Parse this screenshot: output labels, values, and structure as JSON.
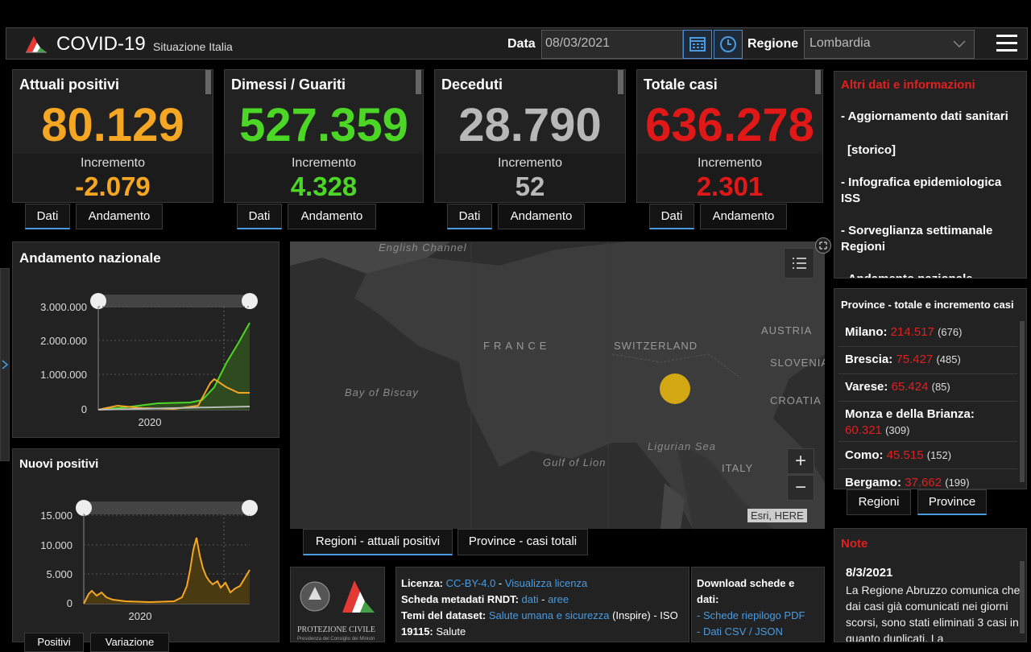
{
  "header": {
    "title": "COVID-19",
    "subtitle": "Situazione Italia",
    "date_label": "Data",
    "date_value": "08/03/2021",
    "region_label": "Regione",
    "region_value": "Lombardia"
  },
  "kpis": [
    {
      "title": "Attuali positivi",
      "value": "80.129",
      "incr_label": "Incremento",
      "incr": "-2.079",
      "color": "#f5a623",
      "tabs": [
        "Dati",
        "Andamento"
      ]
    },
    {
      "title": "Dimessi / Guariti",
      "value": "527.359",
      "incr_label": "Incremento",
      "incr": "4.328",
      "color": "#4cd625",
      "tabs": [
        "Dati",
        "Andamento"
      ]
    },
    {
      "title": "Deceduti",
      "value": "28.790",
      "incr_label": "Incremento",
      "incr": "52",
      "color": "#b8b8b8",
      "tabs": [
        "Dati",
        "Andamento"
      ]
    },
    {
      "title": "Totale casi",
      "value": "636.278",
      "incr_label": "Incremento",
      "incr": "2.301",
      "color": "#e01818",
      "tabs": [
        "Dati",
        "Andamento"
      ]
    }
  ],
  "info": {
    "title": "Altri dati e informazioni",
    "items": [
      "- Aggiornamento dati sanitari",
      "[storico]",
      "- Infografica epidemiologica ISS",
      "- Sorveglianza settimanale Regioni",
      "- Andamento nazionale"
    ]
  },
  "provinces": {
    "title": "Province - totale e incremento casi",
    "rows": [
      {
        "name": "Milano:",
        "total": "214.517",
        "incr": "(676)"
      },
      {
        "name": "Brescia:",
        "total": "75.427",
        "incr": "(485)"
      },
      {
        "name": "Varese:",
        "total": "65.424",
        "incr": "(85)"
      },
      {
        "name": "Monza e della Brianza:",
        "total": "60.321",
        "incr": "(309)"
      },
      {
        "name": "Como:",
        "total": "45.515",
        "incr": "(152)"
      },
      {
        "name": "Bergamo:",
        "total": "37.662",
        "incr": "(199)"
      }
    ],
    "tabs": [
      "Regioni",
      "Province"
    ]
  },
  "note": {
    "title": "Note",
    "date": "8/3/2021",
    "text": "La Regione Abruzzo comunica che dai casi già comunicati nei giorni scorsi, sono stati eliminati 3 casi in quanto duplicati. La"
  },
  "chart_andamento": {
    "title": "Andamento nazionale",
    "chart_data": {
      "type": "area",
      "yticks": [
        "3.000.000",
        "2.000.000",
        "1.000.000",
        "0"
      ],
      "xticks": [
        "2020"
      ],
      "ylim": [
        0,
        3000000
      ]
    }
  },
  "chart_nuovi": {
    "title": "Nuovi positivi",
    "chart_data": {
      "type": "area",
      "yticks": [
        "15.000",
        "10.000",
        "5.000",
        "0"
      ],
      "xticks": [
        "2020"
      ],
      "ylim": [
        0,
        15000
      ]
    },
    "tabs": [
      "Positivi",
      "Variazione"
    ]
  },
  "map": {
    "labels": [
      "English Channel",
      "FRANCE",
      "SWITZERLAND",
      "AUSTRIA",
      "SLOVENIA",
      "CROATIA",
      "Bay of Biscay",
      "Gulf of Lion",
      "Ligurian Sea",
      "ITALY"
    ],
    "attribution": "Esri, HERE",
    "tabs": [
      "Regioni - attuali positivi",
      "Province - casi totali"
    ],
    "zoom_in": "+",
    "zoom_out": "−"
  },
  "footer": {
    "logo_text": "PROTEZIONE CIVILE",
    "logo_sub": "Presidenza del Consiglio dei Ministri",
    "license_label": "Licenza:",
    "license_value": "CC-BY-4.0",
    "license_link": "Visualizza licenza",
    "metadata_label": "Scheda metadati RNDT:",
    "metadata_links": [
      "dati",
      "aree"
    ],
    "themes_label": "Temi del dataset:",
    "themes_value": "Salute umana e sicurezza",
    "themes_rest": "(Inspire) - ISO",
    "themes_iso": "19115:",
    "themes_iso_value": "Salute",
    "download_title": "Download schede e dati:",
    "download_links": [
      "- Schede riepilogo PDF",
      "- Dati CSV / JSON"
    ]
  }
}
